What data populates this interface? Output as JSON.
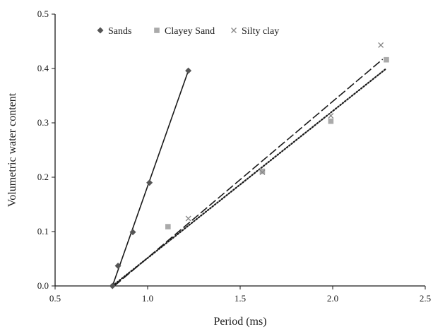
{
  "chart_data": {
    "type": "scatter",
    "xlabel": "Period (ms)",
    "ylabel": "Volumetric water content",
    "xlim": [
      0.5,
      2.5
    ],
    "ylim": [
      0.0,
      0.5
    ],
    "x_ticks": [
      "0.5",
      "1.0",
      "1.5",
      "2.0",
      "2.5"
    ],
    "y_ticks": [
      "0.0",
      "0.1",
      "0.2",
      "0.3",
      "0.4",
      "0.5"
    ],
    "grid": false,
    "legend_position": "top",
    "series": [
      {
        "name": "Sands",
        "marker": "diamond",
        "color": "#555555",
        "points": [
          [
            0.81,
            0.0
          ],
          [
            0.84,
            0.037
          ],
          [
            0.92,
            0.099
          ],
          [
            1.01,
            0.19
          ],
          [
            1.22,
            0.396
          ]
        ],
        "trendline": {
          "style": "solid",
          "from": [
            0.81,
            0.0
          ],
          "to": [
            1.22,
            0.396
          ]
        }
      },
      {
        "name": "Clayey Sand",
        "marker": "square",
        "color": "#aaaaaa",
        "points": [
          [
            1.11,
            0.109
          ],
          [
            1.62,
            0.211
          ],
          [
            1.99,
            0.303
          ],
          [
            2.29,
            0.416
          ]
        ],
        "trendline": {
          "style": "dotted",
          "from": [
            0.81,
            0.0
          ],
          "to": [
            2.29,
            0.4
          ]
        }
      },
      {
        "name": "Silty clay",
        "marker": "x",
        "color": "#888888",
        "points": [
          [
            1.22,
            0.124
          ],
          [
            1.62,
            0.209
          ],
          [
            1.99,
            0.313
          ],
          [
            2.26,
            0.443
          ]
        ],
        "trendline": {
          "style": "dashed",
          "from": [
            0.82,
            0.0
          ],
          "to": [
            2.27,
            0.417
          ]
        }
      }
    ]
  }
}
